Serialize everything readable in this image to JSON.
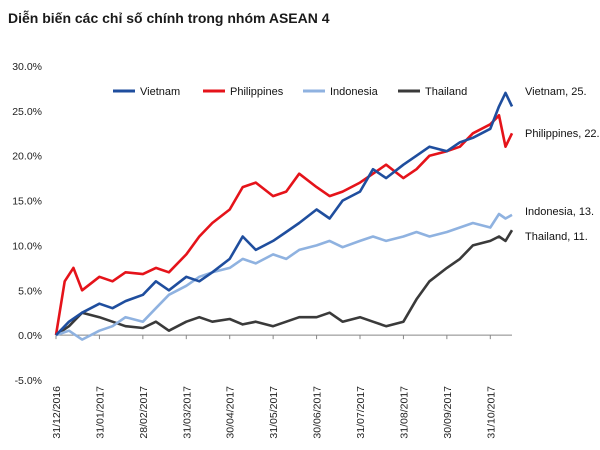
{
  "title": "Diễn biến các chỉ số chính trong nhóm ASEAN 4",
  "chart_data": {
    "type": "line",
    "title": "Diễn biến các chỉ số chính trong nhóm ASEAN 4",
    "xlabel": "",
    "ylabel": "",
    "ylim": [
      -5,
      30
    ],
    "yticks": [
      -5,
      0,
      5,
      10,
      15,
      20,
      25,
      30
    ],
    "ytick_labels": [
      "-5.0%",
      "0.0%",
      "5.0%",
      "10.0%",
      "15.0%",
      "20.0%",
      "25.0%",
      "30.0%"
    ],
    "x_tick_labels": [
      "31/12/2016",
      "31/01/2017",
      "28/02/2017",
      "31/03/2017",
      "30/04/2017",
      "31/05/2017",
      "30/06/2017",
      "31/07/2017",
      "31/08/2017",
      "30/09/2017",
      "31/10/2017"
    ],
    "grid": false,
    "legend_position": "top",
    "x_unit": "month offset from 31/12/2016",
    "series": [
      {
        "name": "Vietnam",
        "color": "#1f4e9e",
        "end_label": "Vietnam, 25.",
        "points": [
          [
            0,
            0
          ],
          [
            0.3,
            1.5
          ],
          [
            0.6,
            2.5
          ],
          [
            1.0,
            3.5
          ],
          [
            1.3,
            3.0
          ],
          [
            1.6,
            3.8
          ],
          [
            2.0,
            4.5
          ],
          [
            2.3,
            6.0
          ],
          [
            2.6,
            5.0
          ],
          [
            3.0,
            6.5
          ],
          [
            3.3,
            6.0
          ],
          [
            3.6,
            7.0
          ],
          [
            4.0,
            8.5
          ],
          [
            4.3,
            11.0
          ],
          [
            4.6,
            9.5
          ],
          [
            5.0,
            10.5
          ],
          [
            5.3,
            11.5
          ],
          [
            5.6,
            12.5
          ],
          [
            6.0,
            14.0
          ],
          [
            6.3,
            13.0
          ],
          [
            6.6,
            15.0
          ],
          [
            7.0,
            16.0
          ],
          [
            7.3,
            18.5
          ],
          [
            7.6,
            17.5
          ],
          [
            8.0,
            19.0
          ],
          [
            8.3,
            20.0
          ],
          [
            8.6,
            21.0
          ],
          [
            9.0,
            20.5
          ],
          [
            9.3,
            21.5
          ],
          [
            9.6,
            22.0
          ],
          [
            10.0,
            23.0
          ],
          [
            10.2,
            25.5
          ],
          [
            10.35,
            27.0
          ],
          [
            10.5,
            25.5
          ]
        ]
      },
      {
        "name": "Philippines",
        "color": "#e5131a",
        "end_label": "Philippines, 22.",
        "points": [
          [
            0,
            0
          ],
          [
            0.2,
            6.0
          ],
          [
            0.4,
            7.5
          ],
          [
            0.6,
            5.0
          ],
          [
            1.0,
            6.5
          ],
          [
            1.3,
            6.0
          ],
          [
            1.6,
            7.0
          ],
          [
            2.0,
            6.8
          ],
          [
            2.3,
            7.5
          ],
          [
            2.6,
            7.0
          ],
          [
            3.0,
            9.0
          ],
          [
            3.3,
            11.0
          ],
          [
            3.6,
            12.5
          ],
          [
            4.0,
            14.0
          ],
          [
            4.3,
            16.5
          ],
          [
            4.6,
            17.0
          ],
          [
            5.0,
            15.5
          ],
          [
            5.3,
            16.0
          ],
          [
            5.6,
            18.0
          ],
          [
            6.0,
            16.5
          ],
          [
            6.3,
            15.5
          ],
          [
            6.6,
            16.0
          ],
          [
            7.0,
            17.0
          ],
          [
            7.3,
            18.0
          ],
          [
            7.6,
            19.0
          ],
          [
            8.0,
            17.5
          ],
          [
            8.3,
            18.5
          ],
          [
            8.6,
            20.0
          ],
          [
            9.0,
            20.5
          ],
          [
            9.3,
            21.0
          ],
          [
            9.6,
            22.5
          ],
          [
            10.0,
            23.5
          ],
          [
            10.2,
            24.5
          ],
          [
            10.35,
            21.0
          ],
          [
            10.5,
            22.5
          ]
        ]
      },
      {
        "name": "Indonesia",
        "color": "#8fb2e0",
        "end_label": "Indonesia, 13.",
        "points": [
          [
            0,
            0
          ],
          [
            0.3,
            0.5
          ],
          [
            0.6,
            -0.5
          ],
          [
            1.0,
            0.5
          ],
          [
            1.3,
            1.0
          ],
          [
            1.6,
            2.0
          ],
          [
            2.0,
            1.5
          ],
          [
            2.3,
            3.0
          ],
          [
            2.6,
            4.5
          ],
          [
            3.0,
            5.5
          ],
          [
            3.3,
            6.5
          ],
          [
            3.6,
            7.0
          ],
          [
            4.0,
            7.5
          ],
          [
            4.3,
            8.5
          ],
          [
            4.6,
            8.0
          ],
          [
            5.0,
            9.0
          ],
          [
            5.3,
            8.5
          ],
          [
            5.6,
            9.5
          ],
          [
            6.0,
            10.0
          ],
          [
            6.3,
            10.5
          ],
          [
            6.6,
            9.8
          ],
          [
            7.0,
            10.5
          ],
          [
            7.3,
            11.0
          ],
          [
            7.6,
            10.5
          ],
          [
            8.0,
            11.0
          ],
          [
            8.3,
            11.5
          ],
          [
            8.6,
            11.0
          ],
          [
            9.0,
            11.5
          ],
          [
            9.3,
            12.0
          ],
          [
            9.6,
            12.5
          ],
          [
            10.0,
            12.0
          ],
          [
            10.2,
            13.5
          ],
          [
            10.35,
            13.0
          ],
          [
            10.5,
            13.4
          ]
        ]
      },
      {
        "name": "Thailand",
        "color": "#3a3a3a",
        "end_label": "Thailand, 11.",
        "points": [
          [
            0,
            0
          ],
          [
            0.3,
            1.0
          ],
          [
            0.6,
            2.5
          ],
          [
            1.0,
            2.0
          ],
          [
            1.3,
            1.5
          ],
          [
            1.6,
            1.0
          ],
          [
            2.0,
            0.8
          ],
          [
            2.3,
            1.5
          ],
          [
            2.6,
            0.5
          ],
          [
            3.0,
            1.5
          ],
          [
            3.3,
            2.0
          ],
          [
            3.6,
            1.5
          ],
          [
            4.0,
            1.8
          ],
          [
            4.3,
            1.2
          ],
          [
            4.6,
            1.5
          ],
          [
            5.0,
            1.0
          ],
          [
            5.3,
            1.5
          ],
          [
            5.6,
            2.0
          ],
          [
            6.0,
            2.0
          ],
          [
            6.3,
            2.5
          ],
          [
            6.6,
            1.5
          ],
          [
            7.0,
            2.0
          ],
          [
            7.3,
            1.5
          ],
          [
            7.6,
            1.0
          ],
          [
            8.0,
            1.5
          ],
          [
            8.3,
            4.0
          ],
          [
            8.6,
            6.0
          ],
          [
            9.0,
            7.5
          ],
          [
            9.3,
            8.5
          ],
          [
            9.6,
            10.0
          ],
          [
            10.0,
            10.5
          ],
          [
            10.2,
            11.0
          ],
          [
            10.35,
            10.5
          ],
          [
            10.5,
            11.7
          ]
        ]
      }
    ]
  }
}
